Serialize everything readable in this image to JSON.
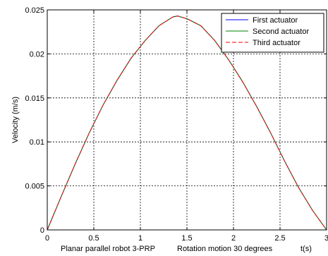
{
  "chart_data": {
    "type": "line",
    "ylabel": "Velocity (m/s)",
    "xlabel_parts": [
      "Planar parallel robot 3-PRP",
      "Rotation motion 30 degrees",
      "t(s)"
    ],
    "xlim": [
      0,
      3
    ],
    "ylim": [
      0,
      0.025
    ],
    "x_ticks": [
      "0",
      "0.5",
      "1",
      "1.5",
      "2",
      "2.5",
      "3"
    ],
    "y_ticks": [
      "0",
      "0.005",
      "0.01",
      "0.015",
      "0.02",
      "0.025"
    ],
    "grid": true,
    "legend_position": "top-right",
    "x": [
      0,
      0.15,
      0.3,
      0.45,
      0.6,
      0.75,
      0.9,
      1.05,
      1.2,
      1.35,
      1.4,
      1.5,
      1.65,
      1.8,
      1.95,
      2.1,
      2.25,
      2.4,
      2.55,
      2.7,
      2.85,
      3.0
    ],
    "series": [
      {
        "name": "First actuator",
        "color": "#0000ff",
        "dash": "solid",
        "values": [
          0,
          0.0038,
          0.0075,
          0.011,
          0.0142,
          0.017,
          0.0195,
          0.0215,
          0.0232,
          0.0242,
          0.0243,
          0.024,
          0.0232,
          0.0215,
          0.0193,
          0.0168,
          0.014,
          0.011,
          0.0078,
          0.0048,
          0.0022,
          0
        ]
      },
      {
        "name": "Second actuator",
        "color": "#008000",
        "dash": "solid",
        "values": [
          0,
          0.0038,
          0.0075,
          0.011,
          0.0142,
          0.017,
          0.0195,
          0.0215,
          0.0232,
          0.0242,
          0.0243,
          0.024,
          0.0232,
          0.0215,
          0.0193,
          0.0168,
          0.014,
          0.011,
          0.0078,
          0.0048,
          0.0022,
          0
        ]
      },
      {
        "name": "Third actuator",
        "color": "#ff0000",
        "dash": "dashed",
        "values": [
          0,
          0.0038,
          0.0075,
          0.011,
          0.0142,
          0.017,
          0.0195,
          0.0215,
          0.0232,
          0.0242,
          0.0243,
          0.024,
          0.0232,
          0.0215,
          0.0193,
          0.0168,
          0.014,
          0.011,
          0.0078,
          0.0048,
          0.0022,
          0
        ]
      }
    ]
  }
}
